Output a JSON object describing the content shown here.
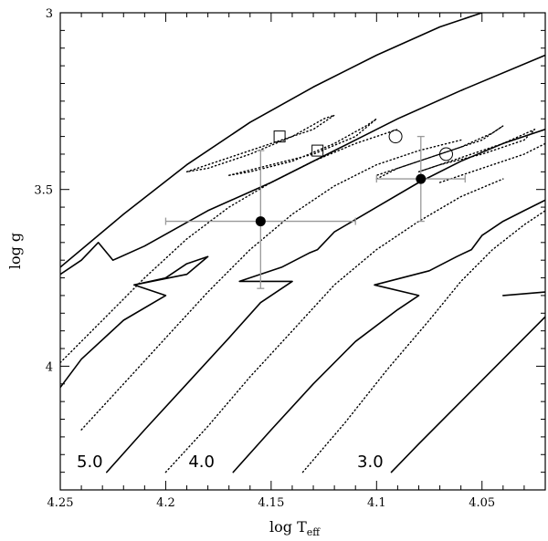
{
  "chart_data": {
    "type": "scatter",
    "xlabel_main": "log T",
    "xlabel_sub": "eff",
    "ylabel": "log g",
    "xlim": [
      4.25,
      4.02
    ],
    "ylim": [
      4.35,
      3.0
    ],
    "x_inverted": true,
    "y_inverted": true,
    "xticks": [
      4.25,
      4.2,
      4.15,
      4.1,
      4.05
    ],
    "xtick_labels": [
      "4.25",
      "4.2",
      "4.15",
      "4.1",
      "4.05"
    ],
    "yticks": [
      3.0,
      3.5,
      4.0
    ],
    "ytick_labels": [
      "3",
      "3.5",
      "4"
    ],
    "series": [
      {
        "style": "solid",
        "points": [
          [
            4.25,
            3.72
          ],
          [
            4.22,
            3.57
          ],
          [
            4.19,
            3.43
          ],
          [
            4.16,
            3.31
          ],
          [
            4.13,
            3.21
          ],
          [
            4.1,
            3.12
          ],
          [
            4.07,
            3.04
          ],
          [
            4.05,
            3.0
          ]
        ]
      },
      {
        "style": "solid",
        "points": [
          [
            4.25,
            3.74
          ],
          [
            4.24,
            3.7
          ],
          [
            4.232,
            3.65
          ],
          [
            4.225,
            3.7
          ],
          [
            4.21,
            3.66
          ],
          [
            4.18,
            3.56
          ],
          [
            4.15,
            3.48
          ],
          [
            4.12,
            3.39
          ],
          [
            4.09,
            3.3
          ],
          [
            4.06,
            3.22
          ],
          [
            4.02,
            3.12
          ]
        ]
      },
      {
        "style": "solid",
        "points": [
          [
            4.25,
            4.06
          ],
          [
            4.24,
            3.98
          ],
          [
            4.22,
            3.87
          ],
          [
            4.2,
            3.8
          ],
          [
            4.215,
            3.77
          ],
          [
            4.19,
            3.74
          ],
          [
            4.18,
            3.69
          ],
          [
            4.19,
            3.71
          ],
          [
            4.2,
            3.75
          ],
          [
            4.215,
            3.77
          ]
        ]
      },
      {
        "style": "solid",
        "points": [
          [
            4.228,
            4.3
          ],
          [
            4.21,
            4.18
          ],
          [
            4.19,
            4.05
          ],
          [
            4.17,
            3.92
          ],
          [
            4.155,
            3.82
          ],
          [
            4.14,
            3.76
          ],
          [
            4.165,
            3.76
          ],
          [
            4.145,
            3.72
          ],
          [
            4.132,
            3.68
          ],
          [
            4.128,
            3.67
          ],
          [
            4.12,
            3.62
          ],
          [
            4.1,
            3.55
          ],
          [
            4.08,
            3.48
          ],
          [
            4.06,
            3.42
          ],
          [
            4.04,
            3.37
          ],
          [
            4.02,
            3.33
          ]
        ]
      },
      {
        "style": "solid",
        "points": [
          [
            4.168,
            4.3
          ],
          [
            4.15,
            4.18
          ],
          [
            4.13,
            4.05
          ],
          [
            4.11,
            3.93
          ],
          [
            4.09,
            3.84
          ],
          [
            4.08,
            3.8
          ],
          [
            4.101,
            3.77
          ],
          [
            4.075,
            3.73
          ],
          [
            4.062,
            3.69
          ],
          [
            4.055,
            3.67
          ],
          [
            4.05,
            3.63
          ],
          [
            4.04,
            3.59
          ],
          [
            4.03,
            3.56
          ],
          [
            4.02,
            3.53
          ]
        ]
      },
      {
        "style": "solid",
        "points": [
          [
            4.093,
            4.3
          ],
          [
            4.08,
            4.22
          ],
          [
            4.06,
            4.1
          ],
          [
            4.04,
            3.98
          ],
          [
            4.02,
            3.86
          ]
        ]
      },
      {
        "style": "solid",
        "points": [
          [
            4.04,
            3.8
          ],
          [
            4.02,
            3.79
          ]
        ]
      },
      {
        "style": "dotted",
        "points": [
          [
            4.25,
            3.99
          ],
          [
            4.23,
            3.87
          ],
          [
            4.21,
            3.75
          ],
          [
            4.19,
            3.64
          ],
          [
            4.17,
            3.55
          ],
          [
            4.15,
            3.48
          ],
          [
            4.13,
            3.42
          ],
          [
            4.11,
            3.37
          ],
          [
            4.09,
            3.33
          ]
        ]
      },
      {
        "style": "dotted",
        "points": [
          [
            4.24,
            4.18
          ],
          [
            4.22,
            4.05
          ],
          [
            4.2,
            3.92
          ],
          [
            4.18,
            3.79
          ],
          [
            4.16,
            3.67
          ],
          [
            4.14,
            3.57
          ],
          [
            4.12,
            3.49
          ],
          [
            4.1,
            3.43
          ],
          [
            4.08,
            3.39
          ],
          [
            4.06,
            3.36
          ]
        ]
      },
      {
        "style": "dotted",
        "points": [
          [
            4.2,
            4.3
          ],
          [
            4.18,
            4.17
          ],
          [
            4.16,
            4.03
          ],
          [
            4.14,
            3.9
          ],
          [
            4.12,
            3.77
          ],
          [
            4.1,
            3.67
          ],
          [
            4.08,
            3.59
          ],
          [
            4.06,
            3.52
          ],
          [
            4.04,
            3.47
          ]
        ]
      },
      {
        "style": "dotted",
        "points": [
          [
            4.135,
            4.3
          ],
          [
            4.115,
            4.16
          ],
          [
            4.095,
            4.01
          ],
          [
            4.075,
            3.87
          ],
          [
            4.06,
            3.76
          ],
          [
            4.045,
            3.67
          ],
          [
            4.03,
            3.6
          ],
          [
            4.02,
            3.56
          ]
        ]
      },
      {
        "style": "dotted",
        "points": [
          [
            4.19,
            3.45
          ],
          [
            4.17,
            3.41
          ],
          [
            4.15,
            3.37
          ],
          [
            4.13,
            3.33
          ],
          [
            4.12,
            3.29
          ],
          [
            4.125,
            3.3
          ],
          [
            4.14,
            3.35
          ],
          [
            4.16,
            3.4
          ],
          [
            4.18,
            3.44
          ],
          [
            4.19,
            3.45
          ]
        ]
      },
      {
        "style": "dotted",
        "points": [
          [
            4.17,
            3.46
          ],
          [
            4.15,
            3.43
          ],
          [
            4.13,
            3.4
          ],
          [
            4.11,
            3.35
          ],
          [
            4.1,
            3.3
          ],
          [
            4.105,
            3.32
          ],
          [
            4.12,
            3.37
          ],
          [
            4.14,
            3.42
          ],
          [
            4.16,
            3.45
          ],
          [
            4.17,
            3.46
          ]
        ]
      },
      {
        "style": "dotted",
        "points": [
          [
            4.1,
            3.47
          ],
          [
            4.09,
            3.44
          ],
          [
            4.07,
            3.4
          ],
          [
            4.05,
            3.36
          ],
          [
            4.04,
            3.32
          ],
          [
            4.045,
            3.34
          ],
          [
            4.06,
            3.38
          ],
          [
            4.08,
            3.42
          ],
          [
            4.1,
            3.46
          ]
        ]
      },
      {
        "style": "dotted",
        "points": [
          [
            4.08,
            3.45
          ],
          [
            4.06,
            3.41
          ],
          [
            4.04,
            3.37
          ],
          [
            4.025,
            3.33
          ],
          [
            4.03,
            3.36
          ],
          [
            4.05,
            3.4
          ],
          [
            4.07,
            3.43
          ],
          [
            4.08,
            3.45
          ]
        ]
      },
      {
        "style": "dotted",
        "points": [
          [
            4.07,
            3.48
          ],
          [
            4.05,
            3.44
          ],
          [
            4.03,
            3.4
          ],
          [
            4.02,
            3.37
          ]
        ]
      }
    ],
    "measured_points": [
      {
        "x": 4.155,
        "y": 3.59,
        "xerr": [
          4.2,
          4.11
        ],
        "yerr": [
          3.39,
          3.78
        ]
      },
      {
        "x": 4.079,
        "y": 3.47,
        "xerr": [
          4.1,
          4.058
        ],
        "yerr": [
          3.35,
          3.59
        ]
      }
    ],
    "open_squares": [
      {
        "x": 4.146,
        "y": 3.35
      },
      {
        "x": 4.128,
        "y": 3.39
      }
    ],
    "open_circles": [
      {
        "x": 4.091,
        "y": 3.35
      },
      {
        "x": 4.067,
        "y": 3.4
      }
    ],
    "mass_labels": [
      {
        "text": "5.0",
        "x": 4.236,
        "y": 4.285
      },
      {
        "text": "4.0",
        "x": 4.183,
        "y": 4.285
      },
      {
        "text": "3.0",
        "x": 4.103,
        "y": 4.285
      }
    ]
  }
}
